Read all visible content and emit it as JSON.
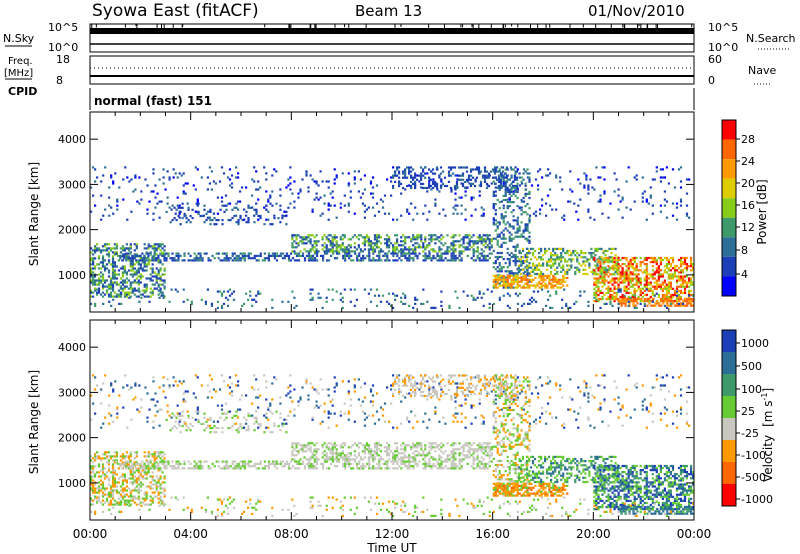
{
  "header": {
    "station": "Syowa East (fitACF)",
    "beam": "Beam 13",
    "date": "01/Nov/2010"
  },
  "strips": {
    "nsky_label": "N.Sky",
    "nsky_ticks": [
      "10^5",
      "10^0"
    ],
    "nsearch_label": "N.Search",
    "nsearch_ticks": [
      "10^5",
      "10^0"
    ],
    "freq_label": "Freq.",
    "freq_unit": "[MHz]",
    "freq_ticks": [
      "18",
      "8"
    ],
    "nave_label": "Nave",
    "nave_ticks": [
      "60",
      "0"
    ],
    "cpid_label": "CPID",
    "cpid_value": "normal (fast) 151"
  },
  "chart_data": [
    {
      "type": "heatmap",
      "ylabel": "Slant Range [km]",
      "xlabel": "Time UT",
      "x_ticks": [
        "00:00",
        "04:00",
        "08:00",
        "12:00",
        "16:00",
        "20:00",
        "00:00"
      ],
      "y_ticks": [
        "1000",
        "2000",
        "3000",
        "4000"
      ],
      "xlim": [
        0,
        24
      ],
      "ylim": [
        180,
        4600
      ],
      "colorbar": {
        "label": "Power [dB]",
        "ticks": [
          "4",
          "8",
          "12",
          "16",
          "20",
          "24",
          "28"
        ],
        "range": [
          0,
          30
        ],
        "colors": [
          "#0000ff",
          "#1c3fb8",
          "#2d6e98",
          "#3e9a6a",
          "#88cc1a",
          "#ddcc00",
          "#ff9900",
          "#ff6600",
          "#ff0000"
        ]
      }
    },
    {
      "type": "heatmap",
      "ylabel": "Slant Range [km]",
      "xlabel": "Time UT",
      "x_ticks": [
        "00:00",
        "04:00",
        "08:00",
        "12:00",
        "16:00",
        "20:00",
        "00:00"
      ],
      "y_ticks": [
        "1000",
        "2000",
        "3000",
        "4000"
      ],
      "xlim": [
        0,
        24
      ],
      "ylim": [
        180,
        4600
      ],
      "colorbar": {
        "label": "Velocity",
        "unit": "[m s",
        "unit_exp": "-1",
        "unit_close": "]",
        "ticks": [
          "1000",
          "500",
          "100",
          "25",
          "-25",
          "-100",
          "-500",
          "-1000"
        ],
        "range": [
          -1200,
          1200
        ],
        "colors": [
          "#1c3fb8",
          "#2d6e98",
          "#3e9a6a",
          "#66cc33",
          "#c8c8c0",
          "#ff9900",
          "#ff6600",
          "#ff0000"
        ]
      }
    }
  ]
}
